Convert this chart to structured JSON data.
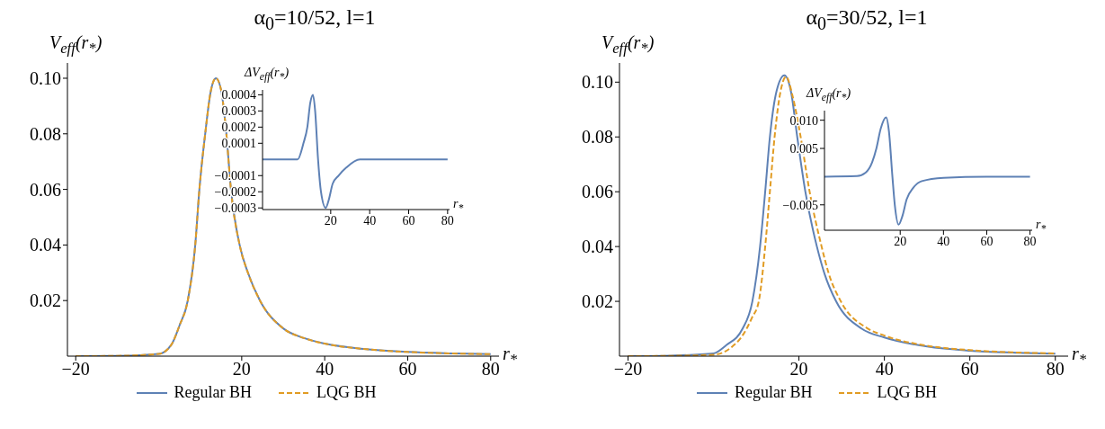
{
  "chart_data": [
    {
      "type": "line",
      "title": "α$_{0}$=10/52, l=1",
      "ylabel": "V$_{eff}$(r$_{*}$)",
      "xlabel": "r$_{*}$",
      "xlim": [
        -22,
        82
      ],
      "ylim": [
        0,
        0.1055
      ],
      "xticks": [
        {
          "value": -20,
          "label": "−20"
        },
        20,
        40,
        60,
        80
      ],
      "yticks": [
        0.02,
        0.04,
        0.06,
        0.08,
        {
          "value": 0.1,
          "label": "0.10"
        }
      ],
      "legend": "bottom",
      "series": [
        {
          "name": "Regular BH",
          "color": "#5e81b5",
          "line_style": "solid",
          "x": [
            -20,
            -10,
            0,
            3,
            5,
            7,
            8.8,
            9.8,
            11.2,
            12.5,
            13.8,
            15,
            16.3,
            17.4,
            19.5,
            21.5,
            24.4,
            30,
            35,
            40,
            50,
            60,
            70,
            80
          ],
          "values": [
            0,
            0.0001,
            0.0008,
            0.004,
            0.011,
            0.02,
            0.04,
            0.06,
            0.08,
            0.095,
            0.1,
            0.096,
            0.08,
            0.06,
            0.04,
            0.03,
            0.02,
            0.01,
            0.0065,
            0.0045,
            0.0025,
            0.0015,
            0.001,
            0.0007
          ]
        },
        {
          "name": "LQG BH",
          "color": "#e19c24",
          "line_style": "dashed",
          "x": [
            -20,
            -10,
            0,
            3,
            5,
            7,
            8.8,
            9.8,
            11.2,
            12.5,
            13.8,
            15,
            16.3,
            17.4,
            19.5,
            21.5,
            24.4,
            30,
            35,
            40,
            50,
            60,
            70,
            80
          ],
          "values": [
            0,
            0.0001,
            0.0008,
            0.004,
            0.011,
            0.02,
            0.04,
            0.06,
            0.08,
            0.095,
            0.1,
            0.096,
            0.08,
            0.06,
            0.04,
            0.03,
            0.02,
            0.01,
            0.0065,
            0.0045,
            0.0025,
            0.0015,
            0.001,
            0.0007
          ]
        }
      ]
    },
    {
      "type": "line",
      "ylabel": "ΔV$_{eff}$(r$_{*}$)",
      "xlabel": "r$_{*}$",
      "xlim": [
        -15,
        81
      ],
      "ylim": [
        -0.00031,
        0.00043
      ],
      "xticks": [
        20,
        40,
        60,
        80
      ],
      "yticks": [
        {
          "value": -0.0003,
          "label": "−0.0003"
        },
        {
          "value": -0.0002,
          "label": "−0.0002"
        },
        {
          "value": -0.0001,
          "label": "−0.0001"
        },
        0.0001,
        0.0002,
        0.0003,
        0.0004
      ],
      "series": [
        {
          "color": "#5e81b5",
          "line_style": "solid",
          "x": [
            -15,
            0,
            3,
            6,
            8,
            9.5,
            10.9,
            12,
            13.5,
            15,
            17.4,
            19,
            21,
            24,
            28,
            35,
            40,
            60,
            80
          ],
          "values": [
            0,
            0,
            0,
            0.0001,
            0.0002,
            0.00035,
            0.0004,
            0.0003,
            0,
            -0.0002,
            -0.0003,
            -0.00025,
            -0.00015,
            -0.0001,
            -5e-05,
            0,
            0,
            0,
            0
          ]
        }
      ]
    },
    {
      "type": "line",
      "title": "α$_{0}$=30/52, l=1",
      "ylabel": "V$_{eff}$(r$_{*}$)",
      "xlabel": "r$_{*}$",
      "xlim": [
        -22,
        83
      ],
      "ylim": [
        0,
        0.107
      ],
      "xticks": [
        {
          "value": -20,
          "label": "−20"
        },
        20,
        40,
        60,
        80
      ],
      "yticks": [
        0.02,
        0.04,
        0.06,
        0.08,
        {
          "value": 0.1,
          "label": "0.10"
        }
      ],
      "legend": "bottom",
      "series": [
        {
          "name": "Regular BH",
          "color": "#5e81b5",
          "line_style": "solid",
          "x": [
            -20,
            -10,
            0,
            3,
            6.8,
            9.1,
            10.9,
            12.1,
            13.2,
            14.8,
            16.6,
            18.2,
            19.6,
            21.5,
            24.2,
            26,
            28.7,
            34.7,
            40,
            50,
            60,
            70,
            80
          ],
          "values": [
            0,
            0.0002,
            0.001,
            0.004,
            0.01,
            0.02,
            0.04,
            0.06,
            0.08,
            0.097,
            0.1025,
            0.096,
            0.08,
            0.06,
            0.04,
            0.03,
            0.02,
            0.01,
            0.0068,
            0.0035,
            0.002,
            0.0013,
            0.0009
          ]
        },
        {
          "name": "LQG BH",
          "color": "#e19c24",
          "line_style": "dashed",
          "x": [
            -20,
            -10,
            0,
            4,
            7,
            9,
            10.6,
            12.1,
            13.2,
            14.3,
            15.5,
            17,
            18.5,
            20.4,
            22.5,
            25.3,
            27,
            29.8,
            36.2,
            40,
            50,
            60,
            70,
            80
          ],
          "values": [
            0,
            0.0001,
            0.0005,
            0.003,
            0.008,
            0.014,
            0.02,
            0.04,
            0.06,
            0.08,
            0.095,
            0.102,
            0.095,
            0.08,
            0.06,
            0.04,
            0.03,
            0.02,
            0.01,
            0.0075,
            0.0038,
            0.0022,
            0.0014,
            0.001
          ]
        }
      ]
    },
    {
      "type": "line",
      "ylabel": "ΔV$_{eff}$(r$_{*}$)",
      "xlabel": "r$_{*}$",
      "xlim": [
        -15,
        81
      ],
      "ylim": [
        -0.0095,
        0.0117
      ],
      "xticks": [
        20,
        40,
        60,
        80
      ],
      "yticks": [
        {
          "value": -0.005,
          "label": "−0.005"
        },
        0.005,
        {
          "value": 0.01,
          "label": "0.010"
        }
      ],
      "series": [
        {
          "color": "#5e81b5",
          "line_style": "solid",
          "x": [
            -15,
            0,
            4,
            7,
            9,
            11,
            13.5,
            14.8,
            16.4,
            17.5,
            19.3,
            21,
            23,
            26,
            30,
            40,
            60,
            80
          ],
          "values": [
            0,
            0.0001,
            0.0007,
            0.0025,
            0.005,
            0.0085,
            0.0105,
            0.008,
            0,
            -0.005,
            -0.0085,
            -0.007,
            -0.004,
            -0.002,
            -0.0008,
            -0.0002,
            0,
            0
          ]
        }
      ]
    }
  ]
}
